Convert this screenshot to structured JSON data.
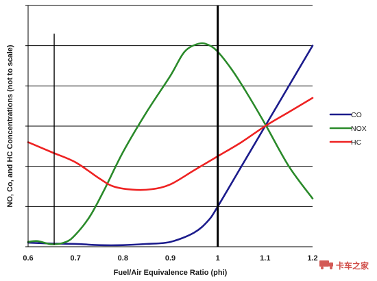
{
  "chart_data": {
    "type": "line",
    "title": "",
    "xlabel": "Fuel/Air Equivalence Ratio (phi)",
    "ylabel": "NO, Co, and HC Concentrations (not to scale)",
    "xlim": [
      0.6,
      1.2
    ],
    "ylim": [
      0,
      6
    ],
    "x_ticks": [
      "0.6",
      "0.7",
      "0.8",
      "0.9",
      "1",
      "1.1",
      "1.2"
    ],
    "x_tick_values": [
      0.6,
      0.7,
      0.8,
      0.9,
      1.0,
      1.1,
      1.2
    ],
    "y_gridlines": [
      1,
      2,
      3,
      4,
      5,
      6
    ],
    "grid": "horizontal",
    "legend_position": "right",
    "reference_lines": [
      {
        "x": 1.0,
        "y_range": [
          0,
          6
        ],
        "color": "#000000",
        "style": "thick"
      },
      {
        "x": 0.655,
        "y_range": [
          0.05,
          5.3
        ],
        "color": "#000000",
        "style": "thin"
      }
    ],
    "series": [
      {
        "name": "CO",
        "color": "#1c1c8c",
        "points": [
          [
            0.6,
            0.1
          ],
          [
            0.65,
            0.08
          ],
          [
            0.7,
            0.07
          ],
          [
            0.75,
            0.04
          ],
          [
            0.8,
            0.04
          ],
          [
            0.85,
            0.07
          ],
          [
            0.9,
            0.12
          ],
          [
            0.95,
            0.35
          ],
          [
            0.98,
            0.65
          ],
          [
            1.0,
            1.0
          ],
          [
            1.05,
            2.0
          ],
          [
            1.1,
            3.0
          ],
          [
            1.15,
            4.0
          ],
          [
            1.2,
            5.0
          ]
        ]
      },
      {
        "name": "NOX",
        "color": "#2a8a2a",
        "points": [
          [
            0.6,
            0.12
          ],
          [
            0.62,
            0.14
          ],
          [
            0.65,
            0.06
          ],
          [
            0.68,
            0.12
          ],
          [
            0.7,
            0.3
          ],
          [
            0.73,
            0.75
          ],
          [
            0.76,
            1.4
          ],
          [
            0.8,
            2.35
          ],
          [
            0.85,
            3.35
          ],
          [
            0.9,
            4.25
          ],
          [
            0.93,
            4.85
          ],
          [
            0.96,
            5.05
          ],
          [
            0.98,
            5.02
          ],
          [
            1.0,
            4.85
          ],
          [
            1.03,
            4.4
          ],
          [
            1.06,
            3.85
          ],
          [
            1.1,
            3.05
          ],
          [
            1.15,
            2.0
          ],
          [
            1.2,
            1.2
          ]
        ]
      },
      {
        "name": "HC",
        "color": "#ee2222",
        "points": [
          [
            0.6,
            2.6
          ],
          [
            0.65,
            2.35
          ],
          [
            0.7,
            2.1
          ],
          [
            0.75,
            1.7
          ],
          [
            0.78,
            1.5
          ],
          [
            0.82,
            1.42
          ],
          [
            0.86,
            1.43
          ],
          [
            0.9,
            1.55
          ],
          [
            0.95,
            1.9
          ],
          [
            1.0,
            2.25
          ],
          [
            1.05,
            2.6
          ],
          [
            1.1,
            3.0
          ],
          [
            1.15,
            3.35
          ],
          [
            1.2,
            3.7
          ]
        ]
      }
    ]
  },
  "watermark": {
    "text": "卡车之家",
    "color": "#c8302a"
  }
}
